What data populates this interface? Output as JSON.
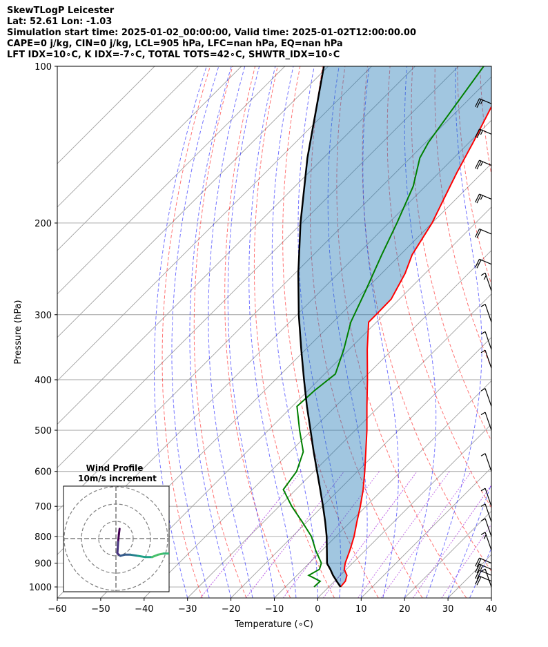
{
  "header": {
    "line1": "SkewTLogP Leicester",
    "line2": "Lat: 52.61   Lon: -1.03",
    "line3": "Simulation start time: 2025-01-02_00:00:00, Valid time: 2025-01-02T12:00:00.00",
    "line4": "CAPE=0 j/kg, CIN=0 j/kg, LCL=905 hPa, LFC=nan hPa, EQ=nan hPa",
    "line5": "LFT IDX=10∘C, K IDX=-7∘C, TOTAL TOTS=42∘C, SHWTR_IDX=10∘C"
  },
  "chart_data": {
    "type": "line",
    "xlabel": "Temperature (∘C)",
    "ylabel": "Pressure (hPa)",
    "xlim": [
      -60,
      40
    ],
    "ylim": [
      1050,
      100
    ],
    "y_scale": "log",
    "x_ticks": [
      -60,
      -50,
      -40,
      -30,
      -20,
      -10,
      0,
      10,
      20,
      30,
      40
    ],
    "x_tick_labels": [
      "−60",
      "−50",
      "−40",
      "−30",
      "−20",
      "−10",
      "0",
      "10",
      "20",
      "30",
      "40"
    ],
    "y_ticks": [
      1000,
      900,
      800,
      700,
      600,
      500,
      400,
      300,
      200,
      100
    ],
    "y_tick_labels": [
      "1000",
      "900",
      "800",
      "700",
      "600",
      "500",
      "400",
      "300",
      "200",
      "100"
    ],
    "grid": true,
    "colors": {
      "temperature": "#ff0000",
      "dewpoint": "#008000",
      "parcel": "#000000",
      "cin_fill": "#1f77b4",
      "dry_adiabat": "#ff0000",
      "moist_adiabat": "#0000ff",
      "mixing_ratio": "#9400d3",
      "isotherm": "#a0a0a0",
      "barb": "#000000"
    },
    "series": [
      {
        "kind": "temperature",
        "points": [
          {
            "p": 1000,
            "t": 2.7
          },
          {
            "p": 975,
            "t": 2.5
          },
          {
            "p": 950,
            "t": 1.5
          },
          {
            "p": 925,
            "t": -0.5
          },
          {
            "p": 900,
            "t": -1.7
          },
          {
            "p": 850,
            "t": -3.6
          },
          {
            "p": 800,
            "t": -5.8
          },
          {
            "p": 750,
            "t": -8.5
          },
          {
            "p": 700,
            "t": -11.3
          },
          {
            "p": 650,
            "t": -14.5
          },
          {
            "p": 600,
            "t": -18.3
          },
          {
            "p": 550,
            "t": -22.6
          },
          {
            "p": 500,
            "t": -27.3
          },
          {
            "p": 450,
            "t": -32.8
          },
          {
            "p": 400,
            "t": -38.8
          },
          {
            "p": 350,
            "t": -45.8
          },
          {
            "p": 310,
            "t": -51.8
          },
          {
            "p": 300,
            "t": -51.8
          },
          {
            "p": 280,
            "t": -51.9
          },
          {
            "p": 250,
            "t": -54.6
          },
          {
            "p": 230,
            "t": -57.3
          },
          {
            "p": 200,
            "t": -60.0
          },
          {
            "p": 180,
            "t": -62.8
          },
          {
            "p": 160,
            "t": -65.9
          },
          {
            "p": 140,
            "t": -69.1
          },
          {
            "p": 120,
            "t": -73.0
          },
          {
            "p": 100,
            "t": -77.3
          }
        ]
      },
      {
        "kind": "dewpoint",
        "points": [
          {
            "p": 1000,
            "t": -3.4
          },
          {
            "p": 975,
            "t": -3.3
          },
          {
            "p": 950,
            "t": -7.3
          },
          {
            "p": 925,
            "t": -6.2
          },
          {
            "p": 900,
            "t": -7.2
          },
          {
            "p": 850,
            "t": -11.5
          },
          {
            "p": 800,
            "t": -15.6
          },
          {
            "p": 750,
            "t": -21.1
          },
          {
            "p": 700,
            "t": -27.1
          },
          {
            "p": 650,
            "t": -32.9
          },
          {
            "p": 600,
            "t": -34.0
          },
          {
            "p": 550,
            "t": -37.0
          },
          {
            "p": 500,
            "t": -42.8
          },
          {
            "p": 450,
            "t": -48.9
          },
          {
            "p": 420,
            "t": -48.5
          },
          {
            "p": 390,
            "t": -47.5
          },
          {
            "p": 350,
            "t": -51.2
          },
          {
            "p": 310,
            "t": -55.9
          },
          {
            "p": 270,
            "t": -59.7
          },
          {
            "p": 230,
            "t": -64.3
          },
          {
            "p": 200,
            "t": -68.1
          },
          {
            "p": 170,
            "t": -72.8
          },
          {
            "p": 150,
            "t": -77.8
          },
          {
            "p": 140,
            "t": -79.4
          },
          {
            "p": 120,
            "t": -81.6
          },
          {
            "p": 100,
            "t": -84.2
          }
        ]
      },
      {
        "kind": "parcel",
        "points": [
          {
            "p": 1000,
            "t": 2.7
          },
          {
            "p": 975,
            "t": 0.5
          },
          {
            "p": 950,
            "t": -1.7
          },
          {
            "p": 925,
            "t": -3.7
          },
          {
            "p": 905,
            "t": -5.5
          },
          {
            "p": 900,
            "t": -5.9
          },
          {
            "p": 850,
            "t": -8.9
          },
          {
            "p": 800,
            "t": -12.1
          },
          {
            "p": 750,
            "t": -15.8
          },
          {
            "p": 700,
            "t": -19.9
          },
          {
            "p": 650,
            "t": -24.4
          },
          {
            "p": 600,
            "t": -29.3
          },
          {
            "p": 550,
            "t": -34.6
          },
          {
            "p": 500,
            "t": -40.3
          },
          {
            "p": 450,
            "t": -46.6
          },
          {
            "p": 400,
            "t": -53.4
          },
          {
            "p": 350,
            "t": -61.0
          },
          {
            "p": 300,
            "t": -69.6
          },
          {
            "p": 250,
            "t": -79.2
          },
          {
            "p": 200,
            "t": -90.3
          },
          {
            "p": 150,
            "t": -103.7
          },
          {
            "p": 100,
            "t": -121.0
          }
        ]
      }
    ],
    "barbs": [
      {
        "p": 1000,
        "speed_kt": 10
      },
      {
        "p": 975,
        "speed_kt": 20
      },
      {
        "p": 950,
        "speed_kt": 20
      },
      {
        "p": 925,
        "speed_kt": 25
      },
      {
        "p": 900,
        "speed_kt": 20
      },
      {
        "p": 850,
        "speed_kt": 15
      },
      {
        "p": 800,
        "speed_kt": 10
      },
      {
        "p": 750,
        "speed_kt": 10
      },
      {
        "p": 700,
        "speed_kt": 10
      },
      {
        "p": 600,
        "speed_kt": 10
      },
      {
        "p": 500,
        "speed_kt": 10
      },
      {
        "p": 450,
        "speed_kt": 10
      },
      {
        "p": 380,
        "speed_kt": 10
      },
      {
        "p": 350,
        "speed_kt": 10
      },
      {
        "p": 310,
        "speed_kt": 10
      },
      {
        "p": 270,
        "speed_kt": 15
      },
      {
        "p": 240,
        "speed_kt": 20
      },
      {
        "p": 210,
        "speed_kt": 20
      },
      {
        "p": 180,
        "speed_kt": 25
      },
      {
        "p": 155,
        "speed_kt": 25
      },
      {
        "p": 135,
        "speed_kt": 25
      },
      {
        "p": 118,
        "speed_kt": 25
      }
    ],
    "inset": {
      "title": "Wind Profile",
      "subtitle": "10m/s increment",
      "rings": [
        1,
        2,
        3
      ],
      "hodograph": [
        {
          "u": 0.5,
          "v": 1.3
        },
        {
          "u": 0.4,
          "v": 0.8
        },
        {
          "u": 0.3,
          "v": 0.2
        },
        {
          "u": 0.2,
          "v": -0.8
        },
        {
          "u": 0.6,
          "v": -1.0
        },
        {
          "u": 1.2,
          "v": -0.9
        },
        {
          "u": 2.0,
          "v": -0.9
        },
        {
          "u": 3.0,
          "v": -1.0
        },
        {
          "u": 4.0,
          "v": -1.1
        },
        {
          "u": 5.0,
          "v": -1.1
        },
        {
          "u": 5.8,
          "v": -0.9
        },
        {
          "u": 6.6,
          "v": -0.8
        },
        {
          "u": 7.2,
          "v": -0.8
        }
      ]
    }
  }
}
